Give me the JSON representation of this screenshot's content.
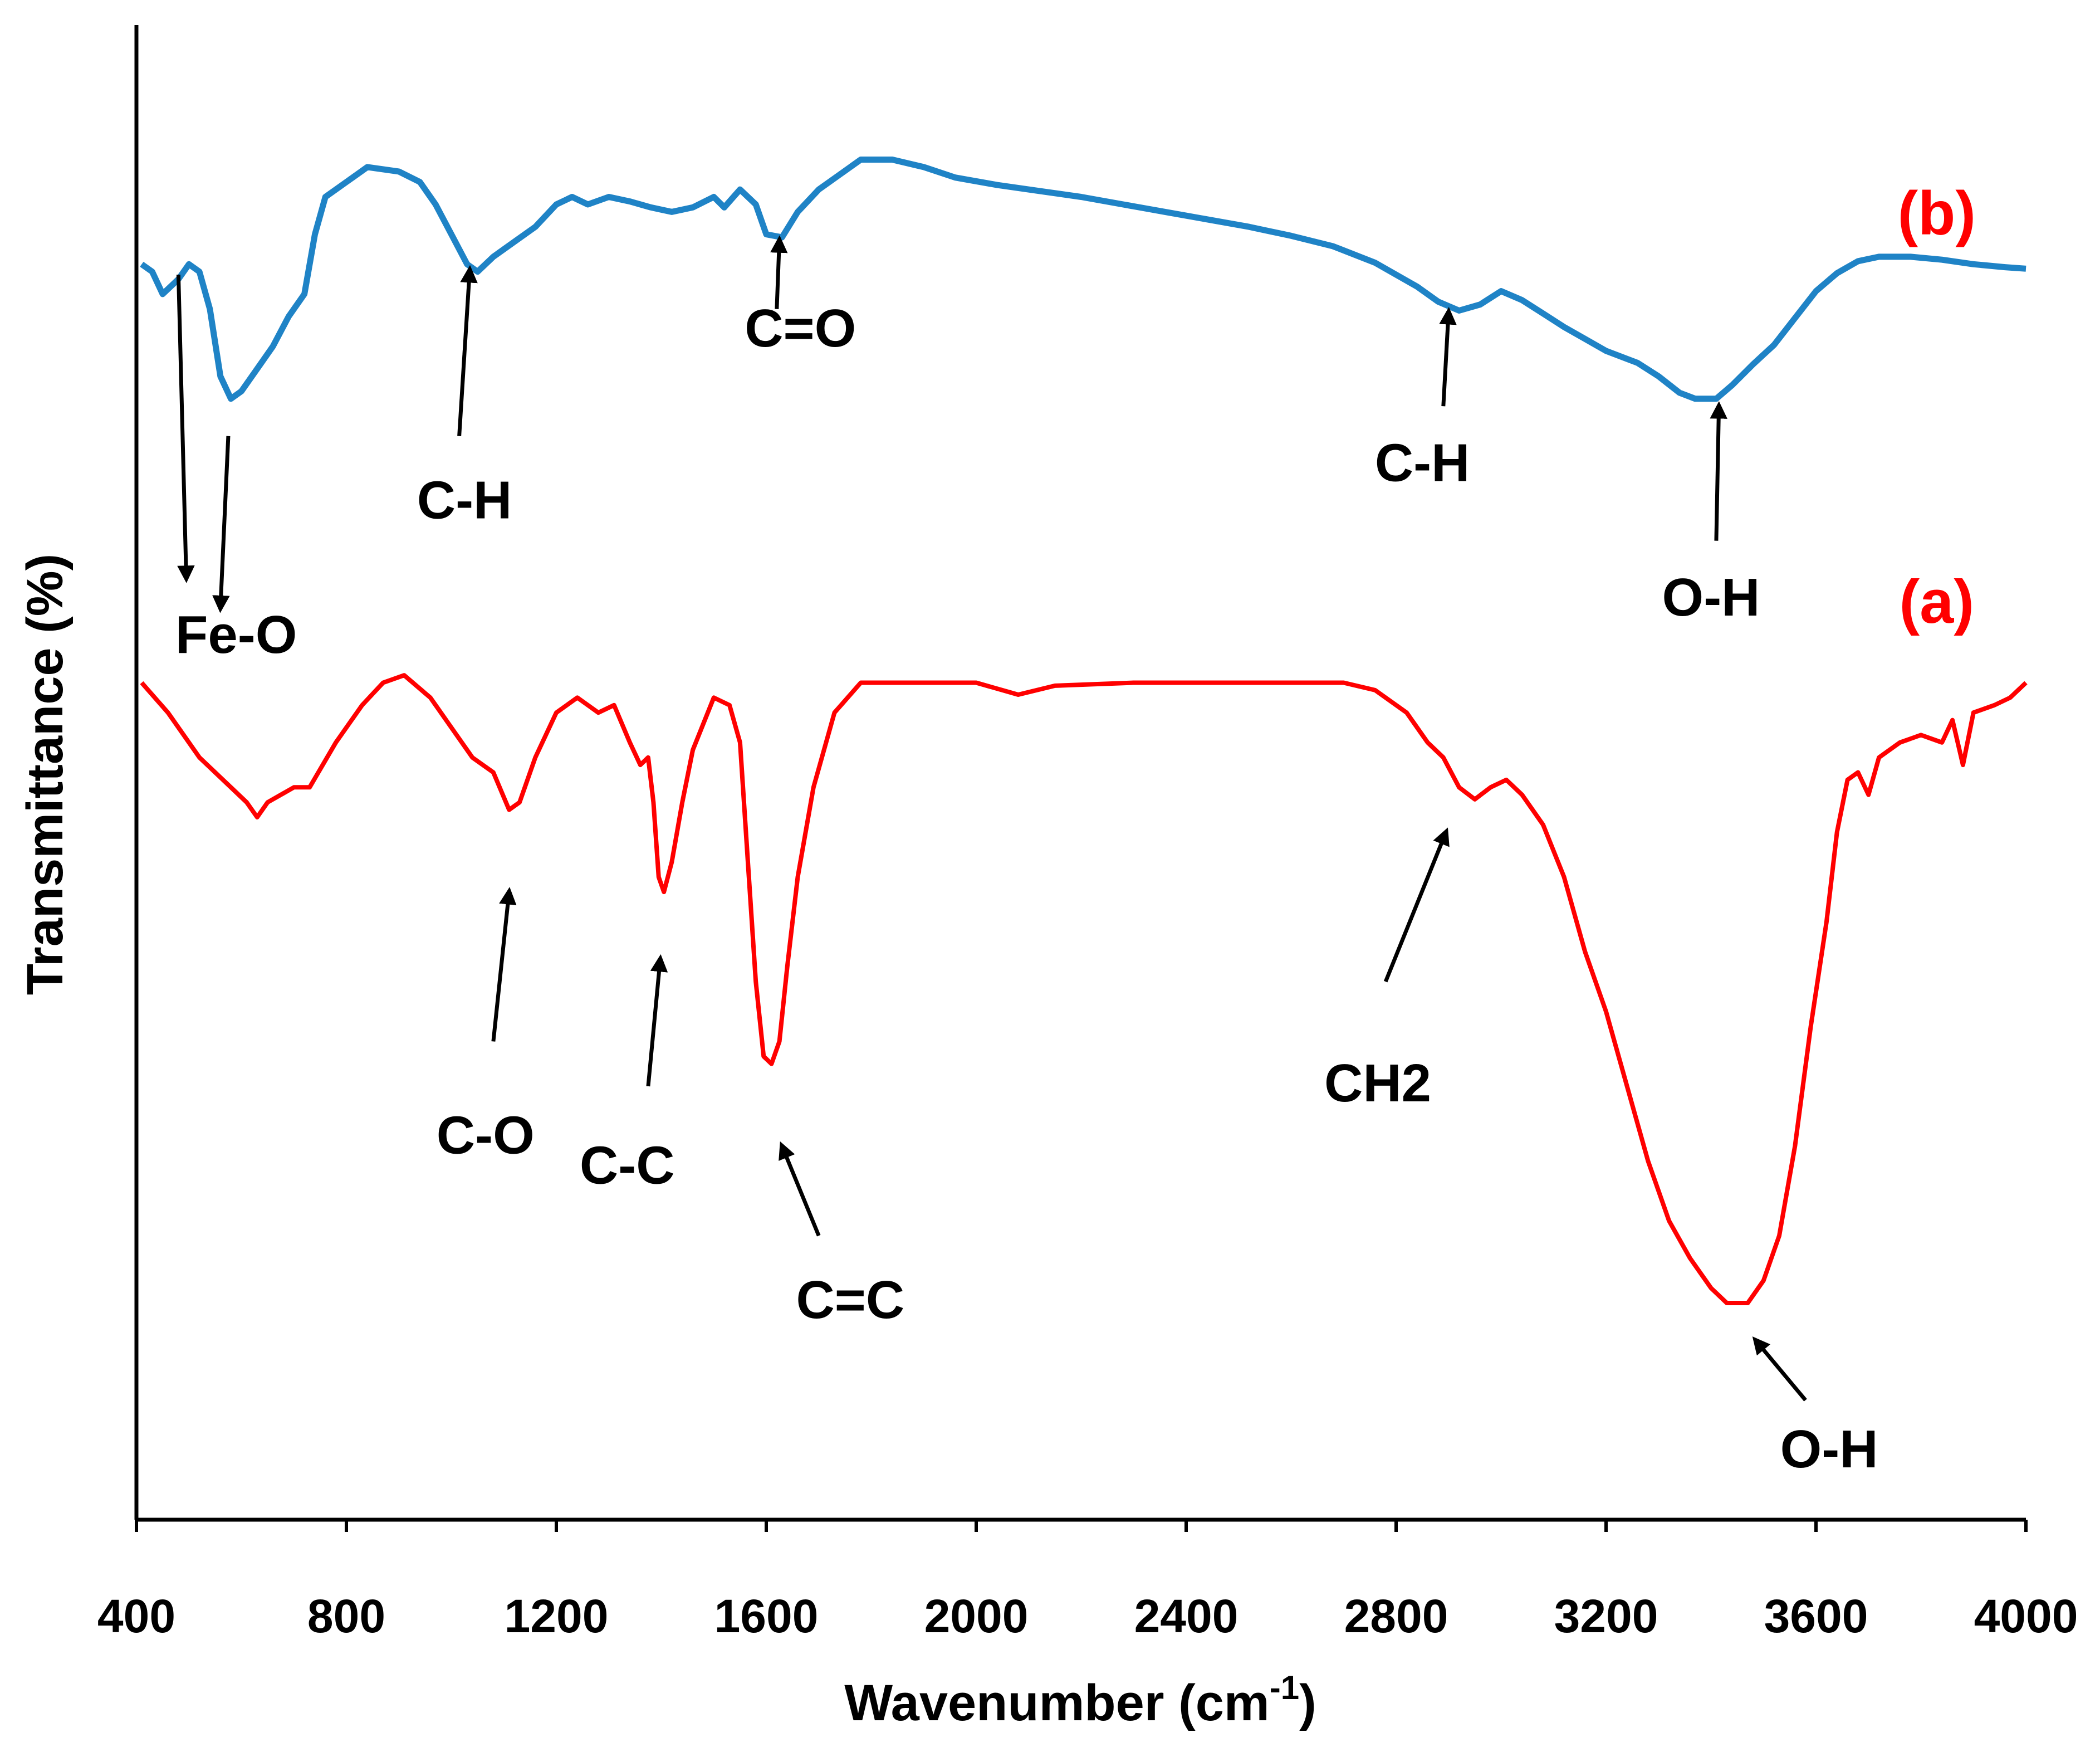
{
  "chart_data": {
    "type": "line",
    "title": "",
    "xlabel": "Wavenumber (cm",
    "xlabel_sup": "-1",
    "xlabel_close": ")",
    "ylabel": "Transmittance (%)",
    "xlim": [
      400,
      4000
    ],
    "ylim": [
      0,
      100
    ],
    "x_ticks": [
      400,
      800,
      1200,
      1600,
      2000,
      2400,
      2800,
      3200,
      3600,
      4000
    ],
    "grid": false,
    "series": [
      {
        "name": "(a)",
        "color": "#ff0000",
        "points": [
          [
            410,
            56
          ],
          [
            460,
            54
          ],
          [
            520,
            51
          ],
          [
            580,
            49
          ],
          [
            610,
            48
          ],
          [
            630,
            47
          ],
          [
            650,
            48
          ],
          [
            700,
            49
          ],
          [
            730,
            49
          ],
          [
            780,
            52
          ],
          [
            830,
            54.5
          ],
          [
            870,
            56
          ],
          [
            910,
            56.5
          ],
          [
            960,
            55
          ],
          [
            1000,
            53
          ],
          [
            1040,
            51
          ],
          [
            1080,
            50
          ],
          [
            1110,
            47.5
          ],
          [
            1130,
            48
          ],
          [
            1160,
            51
          ],
          [
            1200,
            54
          ],
          [
            1240,
            55
          ],
          [
            1280,
            54
          ],
          [
            1310,
            54.5
          ],
          [
            1340,
            52
          ],
          [
            1360,
            50.5
          ],
          [
            1375,
            51
          ],
          [
            1385,
            48
          ],
          [
            1395,
            43
          ],
          [
            1405,
            42
          ],
          [
            1420,
            44
          ],
          [
            1440,
            48
          ],
          [
            1460,
            51.5
          ],
          [
            1500,
            55
          ],
          [
            1530,
            54.5
          ],
          [
            1550,
            52
          ],
          [
            1565,
            44
          ],
          [
            1580,
            36
          ],
          [
            1595,
            31
          ],
          [
            1610,
            30.5
          ],
          [
            1625,
            32
          ],
          [
            1640,
            37
          ],
          [
            1660,
            43
          ],
          [
            1690,
            49
          ],
          [
            1730,
            54
          ],
          [
            1780,
            56
          ],
          [
            2000,
            56
          ],
          [
            2080,
            55.2
          ],
          [
            2150,
            55.8
          ],
          [
            2300,
            56
          ],
          [
            2400,
            56
          ],
          [
            2700,
            56
          ],
          [
            2760,
            55.5
          ],
          [
            2820,
            54
          ],
          [
            2860,
            52
          ],
          [
            2890,
            51
          ],
          [
            2920,
            49
          ],
          [
            2950,
            48.2
          ],
          [
            2980,
            49
          ],
          [
            3010,
            49.5
          ],
          [
            3040,
            48.5
          ],
          [
            3080,
            46.5
          ],
          [
            3120,
            43
          ],
          [
            3160,
            38
          ],
          [
            3200,
            34
          ],
          [
            3240,
            29
          ],
          [
            3280,
            24
          ],
          [
            3320,
            20
          ],
          [
            3360,
            17.5
          ],
          [
            3400,
            15.5
          ],
          [
            3430,
            14.5
          ],
          [
            3470,
            14.5
          ],
          [
            3500,
            16
          ],
          [
            3530,
            19
          ],
          [
            3560,
            25
          ],
          [
            3590,
            33
          ],
          [
            3620,
            40
          ],
          [
            3640,
            46
          ],
          [
            3660,
            49.5
          ],
          [
            3680,
            50
          ],
          [
            3700,
            48.5
          ],
          [
            3720,
            51
          ],
          [
            3760,
            52
          ],
          [
            3800,
            52.5
          ],
          [
            3840,
            52
          ],
          [
            3860,
            53.5
          ],
          [
            3880,
            50.5
          ],
          [
            3900,
            54
          ],
          [
            3940,
            54.5
          ],
          [
            3970,
            55
          ],
          [
            4000,
            56
          ]
        ]
      },
      {
        "name": "(b)",
        "color": "#1f83c6",
        "points": [
          [
            410,
            84
          ],
          [
            430,
            83.5
          ],
          [
            450,
            82
          ],
          [
            480,
            83
          ],
          [
            500,
            84
          ],
          [
            520,
            83.5
          ],
          [
            540,
            81
          ],
          [
            560,
            76.5
          ],
          [
            580,
            75
          ],
          [
            600,
            75.5
          ],
          [
            630,
            77
          ],
          [
            660,
            78.5
          ],
          [
            690,
            80.5
          ],
          [
            720,
            82
          ],
          [
            740,
            86
          ],
          [
            760,
            88.5
          ],
          [
            800,
            89.5
          ],
          [
            840,
            90.5
          ],
          [
            900,
            90.2
          ],
          [
            940,
            89.5
          ],
          [
            970,
            88
          ],
          [
            1000,
            86
          ],
          [
            1030,
            84
          ],
          [
            1050,
            83.5
          ],
          [
            1080,
            84.5
          ],
          [
            1120,
            85.5
          ],
          [
            1160,
            86.5
          ],
          [
            1200,
            88
          ],
          [
            1230,
            88.5
          ],
          [
            1260,
            88
          ],
          [
            1300,
            88.5
          ],
          [
            1340,
            88.2
          ],
          [
            1380,
            87.8
          ],
          [
            1420,
            87.5
          ],
          [
            1460,
            87.8
          ],
          [
            1500,
            88.5
          ],
          [
            1520,
            87.8
          ],
          [
            1550,
            89
          ],
          [
            1580,
            88
          ],
          [
            1600,
            86
          ],
          [
            1630,
            85.8
          ],
          [
            1660,
            87.5
          ],
          [
            1700,
            89
          ],
          [
            1740,
            90
          ],
          [
            1780,
            91
          ],
          [
            1840,
            91
          ],
          [
            1900,
            90.5
          ],
          [
            1960,
            89.8
          ],
          [
            2040,
            89.3
          ],
          [
            2120,
            88.9
          ],
          [
            2200,
            88.5
          ],
          [
            2280,
            88
          ],
          [
            2360,
            87.5
          ],
          [
            2440,
            87
          ],
          [
            2520,
            86.5
          ],
          [
            2600,
            85.9
          ],
          [
            2680,
            85.2
          ],
          [
            2760,
            84.1
          ],
          [
            2840,
            82.5
          ],
          [
            2880,
            81.5
          ],
          [
            2920,
            80.9
          ],
          [
            2960,
            81.3
          ],
          [
            3000,
            82.2
          ],
          [
            3040,
            81.6
          ],
          [
            3080,
            80.7
          ],
          [
            3120,
            79.8
          ],
          [
            3160,
            79
          ],
          [
            3200,
            78.2
          ],
          [
            3260,
            77.4
          ],
          [
            3300,
            76.5
          ],
          [
            3340,
            75.4
          ],
          [
            3370,
            75
          ],
          [
            3410,
            75
          ],
          [
            3440,
            75.9
          ],
          [
            3480,
            77.3
          ],
          [
            3520,
            78.6
          ],
          [
            3560,
            80.4
          ],
          [
            3600,
            82.2
          ],
          [
            3640,
            83.4
          ],
          [
            3680,
            84.2
          ],
          [
            3720,
            84.5
          ],
          [
            3780,
            84.5
          ],
          [
            3840,
            84.3
          ],
          [
            3900,
            84
          ],
          [
            3960,
            83.8
          ],
          [
            4000,
            83.7
          ]
        ]
      }
    ],
    "series_labels": [
      {
        "text": "(b)",
        "x": 3830,
        "y": 86,
        "color": "#ff0000"
      },
      {
        "text": "(a)",
        "x": 3830,
        "y": 60,
        "color": "#ff0000"
      }
    ],
    "annotations": [
      {
        "text": "C-H",
        "series": "(b)",
        "label": [
          1025,
          67
        ],
        "arrow_from": [
          1015,
          72.5
        ],
        "arrow_to": [
          1035,
          83.6
        ]
      },
      {
        "text": "C=O",
        "series": "(b)",
        "label": [
          1665,
          78.5
        ],
        "arrow_from": [
          1620,
          81
        ],
        "arrow_to": [
          1625,
          85.6
        ]
      },
      {
        "text": "C-H",
        "series": "(b)",
        "label": [
          2850,
          69.5
        ],
        "arrow_from": [
          2890,
          74.5
        ],
        "arrow_to": [
          2900,
          80.8
        ]
      },
      {
        "text": "O-H",
        "series": "(b)",
        "label": [
          3400,
          60.5
        ],
        "arrow_from": [
          3410,
          65.5
        ],
        "arrow_to": [
          3415,
          74.5
        ]
      },
      {
        "text": "C-O",
        "series": "(a)",
        "label": [
          1065,
          24.5
        ],
        "arrow_from": [
          1080,
          32
        ],
        "arrow_to": [
          1110,
          42
        ]
      },
      {
        "text": "C-C",
        "series": "(a)",
        "label": [
          1335,
          22.5
        ],
        "arrow_from": [
          1375,
          29
        ],
        "arrow_to": [
          1398,
          37.5
        ]
      },
      {
        "text": "C=C",
        "series": "(a)",
        "label": [
          1760,
          13.5
        ],
        "arrow_from": [
          1700,
          19
        ],
        "arrow_to": [
          1630,
          25
        ]
      },
      {
        "text": "CH2",
        "series": "(a)",
        "label": [
          2765,
          28
        ],
        "arrow_from": [
          2780,
          36
        ],
        "arrow_to": [
          2895,
          46
        ]
      },
      {
        "text": "O-H",
        "series": "(a)",
        "label": [
          3625,
          3.5
        ],
        "arrow_from": [
          3580,
          8
        ],
        "arrow_to": [
          3485,
          12
        ]
      }
    ],
    "fe_o": {
      "text": "Fe-O",
      "label": [
        590,
        58
      ],
      "arrows": [
        {
          "from": [
            480,
            83.3
          ],
          "to": [
            495,
            63
          ]
        },
        {
          "from": [
            575,
            72.5
          ],
          "to": [
            560,
            61
          ]
        }
      ]
    }
  }
}
